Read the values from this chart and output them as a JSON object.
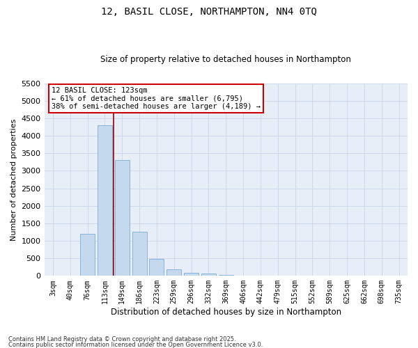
{
  "title_line1": "12, BASIL CLOSE, NORTHAMPTON, NN4 0TQ",
  "title_line2": "Size of property relative to detached houses in Northampton",
  "xlabel": "Distribution of detached houses by size in Northampton",
  "ylabel": "Number of detached properties",
  "categories": [
    "3sqm",
    "40sqm",
    "76sqm",
    "113sqm",
    "149sqm",
    "186sqm",
    "223sqm",
    "259sqm",
    "296sqm",
    "332sqm",
    "369sqm",
    "406sqm",
    "442sqm",
    "479sqm",
    "515sqm",
    "552sqm",
    "589sqm",
    "625sqm",
    "662sqm",
    "698sqm",
    "735sqm"
  ],
  "values": [
    0,
    0,
    1200,
    4300,
    3300,
    1250,
    490,
    190,
    95,
    65,
    22,
    8,
    3,
    2,
    1,
    1,
    0,
    0,
    0,
    0,
    0
  ],
  "bar_color": "#c5d9ee",
  "bar_edgecolor": "#7aadd4",
  "vline_color": "#990000",
  "vline_index": 3.5,
  "annotation_text": "12 BASIL CLOSE: 123sqm\n← 61% of detached houses are smaller (6,795)\n38% of semi-detached houses are larger (4,189) →",
  "annotation_box_facecolor": "white",
  "annotation_box_edgecolor": "#cc0000",
  "ylim_max": 5500,
  "yticks": [
    0,
    500,
    1000,
    1500,
    2000,
    2500,
    3000,
    3500,
    4000,
    4500,
    5000,
    5500
  ],
  "footer_line1": "Contains HM Land Registry data © Crown copyright and database right 2025.",
  "footer_line2": "Contains public sector information licensed under the Open Government Licence v3.0.",
  "axes_bg_color": "#e8eef8",
  "grid_color": "#c8d4e8"
}
